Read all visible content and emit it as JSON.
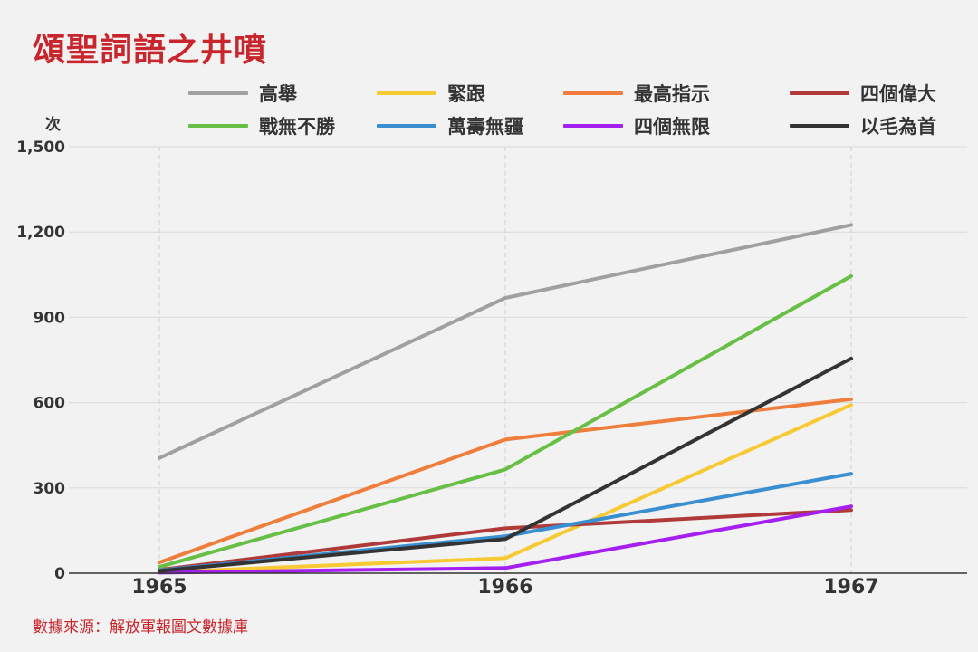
{
  "chart_data": {
    "type": "line",
    "title": "頌聖詞語之井噴",
    "ylabel": "次",
    "xlabel": "",
    "x": [
      "1965",
      "1966",
      "1967"
    ],
    "ylim": [
      0,
      1500
    ],
    "yticks": [
      0,
      300,
      600,
      900,
      1200,
      1500
    ],
    "ytick_labels": [
      "0",
      "300",
      "600",
      "900",
      "1,200",
      "1,500"
    ],
    "grid": true,
    "legend_position": "top",
    "series": [
      {
        "name": "高舉",
        "color": "#a0a0a0",
        "values": [
          405,
          968,
          1225
        ]
      },
      {
        "name": "緊跟",
        "color": "#f7c933",
        "values": [
          3,
          53,
          592
        ]
      },
      {
        "name": "最高指示",
        "color": "#ef7d3c",
        "values": [
          38,
          470,
          612
        ]
      },
      {
        "name": "四個偉大",
        "color": "#b03a3a",
        "values": [
          12,
          158,
          222
        ]
      },
      {
        "name": "戰無不勝",
        "color": "#67bf46",
        "values": [
          22,
          365,
          1045
        ]
      },
      {
        "name": "萬壽無疆",
        "color": "#3a8fd0",
        "values": [
          10,
          130,
          350
        ]
      },
      {
        "name": "四個無限",
        "color": "#a51ff0",
        "values": [
          2,
          18,
          235
        ]
      },
      {
        "name": "以毛為首",
        "color": "#333333",
        "values": [
          8,
          120,
          755
        ]
      }
    ]
  },
  "source": "數據來源：解放軍報圖文數據庫"
}
